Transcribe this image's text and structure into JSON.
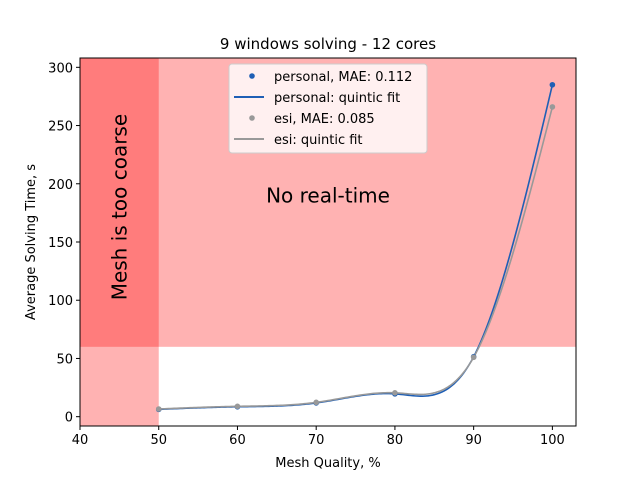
{
  "chart_data": {
    "type": "line",
    "title": "9 windows solving - 12 cores",
    "xlabel": "Mesh Quality, %",
    "ylabel": "Average Solving Time, s",
    "xlim": [
      40,
      103
    ],
    "ylim": [
      -8,
      308
    ],
    "xticks": [
      "40",
      "50",
      "60",
      "70",
      "80",
      "90",
      "100"
    ],
    "yticks": [
      "0",
      "50",
      "100",
      "150",
      "200",
      "250",
      "300"
    ],
    "grid": false,
    "legend_position": "top-center",
    "annotations": [
      {
        "text": "No real-time",
        "x": 71.5,
        "y": 190,
        "rotation": 0
      },
      {
        "text": "Mesh is too coarse",
        "x": 45,
        "y": 180,
        "rotation": -90
      }
    ],
    "regions": [
      {
        "name": "coarse",
        "x": [
          40,
          50
        ],
        "y": [
          -8,
          308
        ],
        "color": "#ffb2b2"
      },
      {
        "name": "no-real-time",
        "x": [
          40,
          103
        ],
        "y": [
          60,
          308
        ],
        "color": "#ffb2b2"
      }
    ],
    "x": [
      50,
      60,
      70,
      80,
      90,
      100
    ],
    "series": [
      {
        "name": "personal, MAE: 0.112",
        "kind": "scatter",
        "color": "#1f5fb5",
        "values": [
          6.3,
          8.5,
          11.8,
          19.6,
          51.5,
          285.0
        ]
      },
      {
        "name": "personal: quintic fit",
        "kind": "line",
        "color": "#1f5fb5",
        "values": [
          6.3,
          8.5,
          11.8,
          19.6,
          51.5,
          285.0
        ]
      },
      {
        "name": "esi, MAE: 0.085",
        "kind": "scatter",
        "color": "#999999",
        "values": [
          6.6,
          8.9,
          12.3,
          20.5,
          51.0,
          266.0
        ]
      },
      {
        "name": "esi: quintic fit",
        "kind": "line",
        "color": "#999999",
        "values": [
          6.6,
          8.9,
          12.3,
          20.5,
          51.0,
          266.0
        ]
      }
    ]
  }
}
